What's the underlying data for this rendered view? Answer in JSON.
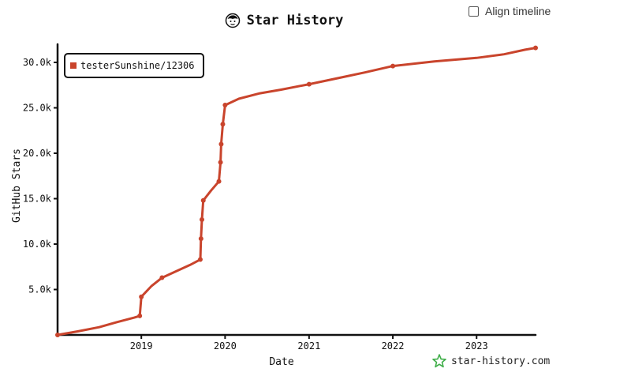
{
  "header": {
    "title": "Star History",
    "align_label": "Align timeline"
  },
  "brand": {
    "label": "star-history.com"
  },
  "colors": {
    "series": "#c9442c",
    "brand_icon": "#3fae49",
    "axis": "#111111"
  },
  "chart_data": {
    "type": "line",
    "title": "Star History",
    "xlabel": "Date",
    "ylabel": "GitHub Stars",
    "x_range": [
      "2018-01-01",
      "2023-09-15"
    ],
    "ylim": [
      0,
      32000
    ],
    "x_ticks": [
      {
        "date": "2019-01-01",
        "label": "2019"
      },
      {
        "date": "2020-01-01",
        "label": "2020"
      },
      {
        "date": "2021-01-01",
        "label": "2021"
      },
      {
        "date": "2022-01-01",
        "label": "2022"
      },
      {
        "date": "2023-01-01",
        "label": "2023"
      }
    ],
    "y_ticks": [
      {
        "value": 5000,
        "label": "5.0k"
      },
      {
        "value": 10000,
        "label": "10.0k"
      },
      {
        "value": 15000,
        "label": "15.0k"
      },
      {
        "value": 20000,
        "label": "20.0k"
      },
      {
        "value": 25000,
        "label": "25.0k"
      },
      {
        "value": 30000,
        "label": "30.0k"
      }
    ],
    "legend_position": "top-left",
    "series": [
      {
        "name": "testerSunshine/12306",
        "points": [
          {
            "date": "2018-01-01",
            "value": 0,
            "marker": true
          },
          {
            "date": "2018-04-01",
            "value": 400
          },
          {
            "date": "2018-07-01",
            "value": 850
          },
          {
            "date": "2018-09-15",
            "value": 1400
          },
          {
            "date": "2018-12-01",
            "value": 1900
          },
          {
            "date": "2018-12-25",
            "value": 2100,
            "marker": true
          },
          {
            "date": "2019-01-01",
            "value": 4200,
            "marker": true
          },
          {
            "date": "2019-02-15",
            "value": 5400
          },
          {
            "date": "2019-04-01",
            "value": 6300,
            "marker": true
          },
          {
            "date": "2019-06-01",
            "value": 7000
          },
          {
            "date": "2019-08-01",
            "value": 7700
          },
          {
            "date": "2019-09-15",
            "value": 8300,
            "marker": true
          },
          {
            "date": "2019-09-18",
            "value": 10600,
            "marker": true
          },
          {
            "date": "2019-09-22",
            "value": 12700,
            "marker": true
          },
          {
            "date": "2019-09-28",
            "value": 14800,
            "marker": true
          },
          {
            "date": "2019-11-01",
            "value": 15900
          },
          {
            "date": "2019-12-05",
            "value": 16900,
            "marker": true
          },
          {
            "date": "2019-12-12",
            "value": 19000,
            "marker": true
          },
          {
            "date": "2019-12-15",
            "value": 21000,
            "marker": true
          },
          {
            "date": "2019-12-22",
            "value": 23200,
            "marker": true
          },
          {
            "date": "2020-01-01",
            "value": 25300,
            "marker": true
          },
          {
            "date": "2020-03-01",
            "value": 26000
          },
          {
            "date": "2020-06-01",
            "value": 26600
          },
          {
            "date": "2020-09-01",
            "value": 27000
          },
          {
            "date": "2021-01-01",
            "value": 27600,
            "marker": true
          },
          {
            "date": "2021-06-01",
            "value": 28400
          },
          {
            "date": "2021-09-01",
            "value": 28900
          },
          {
            "date": "2022-01-01",
            "value": 29600,
            "marker": true
          },
          {
            "date": "2022-07-01",
            "value": 30100
          },
          {
            "date": "2023-01-01",
            "value": 30500
          },
          {
            "date": "2023-05-01",
            "value": 30900
          },
          {
            "date": "2023-08-01",
            "value": 31400
          },
          {
            "date": "2023-09-15",
            "value": 31600,
            "marker": true
          }
        ]
      }
    ]
  }
}
